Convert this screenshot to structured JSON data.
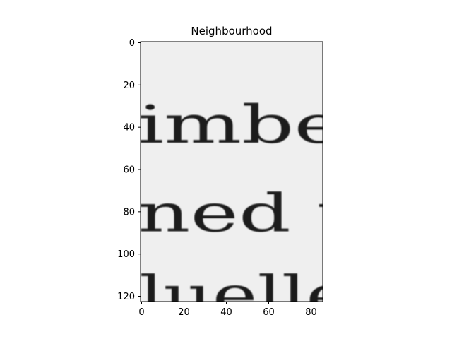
{
  "chart_data": {
    "type": "heatmap",
    "title": "Neighbourhood",
    "xlabel": "",
    "ylabel": "",
    "colormap": "gray",
    "x_axis": {
      "range": [
        -0.5,
        85.5
      ],
      "ticks": [
        0,
        20,
        40,
        60,
        80
      ],
      "tick_labels": [
        "0",
        "20",
        "40",
        "60",
        "80"
      ]
    },
    "y_axis": {
      "range": [
        -0.5,
        122.5
      ],
      "inverted": true,
      "ticks": [
        0,
        20,
        40,
        60,
        80,
        100,
        120
      ],
      "tick_labels": [
        "0",
        "20",
        "40",
        "60",
        "80",
        "100",
        "120"
      ]
    },
    "image_content": {
      "description_lines": [
        {
          "text": "imbe",
          "baseline_row": 50
        },
        {
          "text": "ned t",
          "baseline_row": 92
        },
        {
          "text": "luelle",
          "baseline_row": 134
        }
      ],
      "background_color": "#efefef",
      "ink_color": "#1c1c1c"
    },
    "grid": false,
    "legend": "none"
  }
}
